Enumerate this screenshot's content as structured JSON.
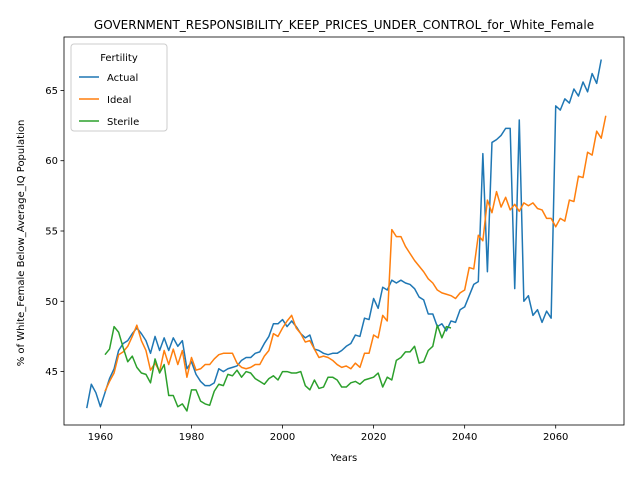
{
  "chart_data": {
    "type": "line",
    "title": "GOVERNMENT_RESPONSIBILITY_KEEP_PRICES_UNDER_CONTROL_for_White_Female",
    "xlabel": "Years",
    "ylabel": "% of White_Female Below_Average_IQ Population",
    "xlim": [
      1952,
      2075
    ],
    "ylim": [
      41.2,
      68.8
    ],
    "xticks": [
      1960,
      1980,
      2000,
      2020,
      2040,
      2060
    ],
    "yticks": [
      45,
      50,
      55,
      60,
      65
    ],
    "grid": false,
    "legend": {
      "title": "Fertility",
      "placement": "upper-left"
    },
    "series": [
      {
        "name": "Actual",
        "color": "#1f77b4",
        "points": [
          [
            1957,
            42.4
          ],
          [
            1958,
            44.1
          ],
          [
            1959,
            43.5
          ],
          [
            1960,
            42.5
          ],
          [
            1961,
            43.5
          ],
          [
            1962,
            44.5
          ],
          [
            1963,
            45.2
          ],
          [
            1964,
            46.5
          ],
          [
            1965,
            47.0
          ],
          [
            1966,
            47.2
          ],
          [
            1967,
            47.7
          ],
          [
            1968,
            48.1
          ],
          [
            1969,
            47.7
          ],
          [
            1970,
            47.2
          ],
          [
            1971,
            46.3
          ],
          [
            1972,
            47.5
          ],
          [
            1973,
            46.5
          ],
          [
            1974,
            47.4
          ],
          [
            1975,
            46.5
          ],
          [
            1976,
            47.4
          ],
          [
            1977,
            46.8
          ],
          [
            1978,
            47.2
          ],
          [
            1979,
            45.2
          ],
          [
            1980,
            45.7
          ],
          [
            1981,
            44.8
          ],
          [
            1982,
            44.3
          ],
          [
            1983,
            44.0
          ],
          [
            1984,
            44.0
          ],
          [
            1985,
            44.2
          ],
          [
            1986,
            45.2
          ],
          [
            1987,
            45.0
          ],
          [
            1988,
            45.2
          ],
          [
            1989,
            45.3
          ],
          [
            1990,
            45.4
          ],
          [
            1991,
            45.8
          ],
          [
            1992,
            46.0
          ],
          [
            1993,
            46.0
          ],
          [
            1994,
            46.3
          ],
          [
            1995,
            46.4
          ],
          [
            1996,
            47.0
          ],
          [
            1997,
            47.5
          ],
          [
            1998,
            48.4
          ],
          [
            1999,
            48.4
          ],
          [
            2000,
            48.7
          ],
          [
            2001,
            48.2
          ],
          [
            2002,
            48.6
          ],
          [
            2003,
            48.2
          ],
          [
            2004,
            47.7
          ],
          [
            2005,
            47.4
          ],
          [
            2006,
            47.6
          ],
          [
            2007,
            46.6
          ],
          [
            2008,
            46.5
          ],
          [
            2009,
            46.3
          ],
          [
            2010,
            46.2
          ],
          [
            2011,
            46.3
          ],
          [
            2012,
            46.3
          ],
          [
            2013,
            46.5
          ],
          [
            2014,
            46.8
          ],
          [
            2015,
            47.0
          ],
          [
            2016,
            47.6
          ],
          [
            2017,
            47.5
          ],
          [
            2018,
            48.8
          ],
          [
            2019,
            48.7
          ],
          [
            2020,
            50.2
          ],
          [
            2021,
            49.5
          ],
          [
            2022,
            51.0
          ],
          [
            2023,
            50.8
          ],
          [
            2024,
            51.5
          ],
          [
            2025,
            51.3
          ],
          [
            2026,
            51.5
          ],
          [
            2027,
            51.3
          ],
          [
            2028,
            51.2
          ],
          [
            2029,
            50.9
          ],
          [
            2030,
            50.3
          ],
          [
            2031,
            50.1
          ],
          [
            2032,
            49.1
          ],
          [
            2033,
            49.1
          ],
          [
            2034,
            48.2
          ],
          [
            2035,
            48.4
          ],
          [
            2036,
            47.9
          ],
          [
            2037,
            48.6
          ],
          [
            2038,
            48.5
          ],
          [
            2039,
            49.4
          ],
          [
            2040,
            49.6
          ],
          [
            2041,
            50.4
          ],
          [
            2042,
            51.2
          ],
          [
            2043,
            51.4
          ],
          [
            2044,
            60.5
          ],
          [
            2045,
            52.1
          ],
          [
            2046,
            61.3
          ],
          [
            2047,
            61.5
          ],
          [
            2048,
            61.8
          ],
          [
            2049,
            62.3
          ],
          [
            2050,
            62.3
          ],
          [
            2051,
            50.9
          ],
          [
            2052,
            62.9
          ],
          [
            2053,
            50.0
          ],
          [
            2054,
            50.4
          ],
          [
            2055,
            49.0
          ],
          [
            2056,
            49.4
          ],
          [
            2057,
            48.5
          ],
          [
            2058,
            49.3
          ],
          [
            2059,
            48.8
          ],
          [
            2060,
            63.9
          ],
          [
            2061,
            63.6
          ],
          [
            2062,
            64.4
          ],
          [
            2063,
            64.1
          ],
          [
            2064,
            65.1
          ],
          [
            2065,
            64.6
          ],
          [
            2066,
            65.6
          ],
          [
            2067,
            64.9
          ],
          [
            2068,
            66.2
          ],
          [
            2069,
            65.5
          ],
          [
            2070,
            67.2
          ]
        ]
      },
      {
        "name": "Ideal",
        "color": "#ff7f0e",
        "points": [
          [
            1961,
            43.6
          ],
          [
            1962,
            44.3
          ],
          [
            1963,
            44.9
          ],
          [
            1964,
            46.2
          ],
          [
            1965,
            46.4
          ],
          [
            1966,
            46.8
          ],
          [
            1967,
            47.5
          ],
          [
            1968,
            48.3
          ],
          [
            1969,
            47.2
          ],
          [
            1970,
            46.5
          ],
          [
            1971,
            45.1
          ],
          [
            1972,
            45.6
          ],
          [
            1973,
            45.0
          ],
          [
            1974,
            46.5
          ],
          [
            1975,
            45.5
          ],
          [
            1976,
            46.6
          ],
          [
            1977,
            45.5
          ],
          [
            1978,
            46.5
          ],
          [
            1979,
            44.6
          ],
          [
            1980,
            46.0
          ],
          [
            1981,
            45.1
          ],
          [
            1982,
            45.2
          ],
          [
            1983,
            45.5
          ],
          [
            1984,
            45.5
          ],
          [
            1985,
            45.9
          ],
          [
            1986,
            46.2
          ],
          [
            1987,
            46.3
          ],
          [
            1988,
            46.3
          ],
          [
            1989,
            46.3
          ],
          [
            1990,
            45.6
          ],
          [
            1991,
            45.3
          ],
          [
            1992,
            45.2
          ],
          [
            1993,
            45.3
          ],
          [
            1994,
            45.5
          ],
          [
            1995,
            45.5
          ],
          [
            1996,
            46.1
          ],
          [
            1997,
            46.5
          ],
          [
            1998,
            47.7
          ],
          [
            1999,
            47.5
          ],
          [
            2000,
            48.1
          ],
          [
            2001,
            48.6
          ],
          [
            2002,
            49.0
          ],
          [
            2003,
            48.1
          ],
          [
            2004,
            47.7
          ],
          [
            2005,
            47.1
          ],
          [
            2006,
            47.2
          ],
          [
            2007,
            46.6
          ],
          [
            2008,
            46.0
          ],
          [
            2009,
            46.1
          ],
          [
            2010,
            46.0
          ],
          [
            2011,
            45.8
          ],
          [
            2012,
            45.5
          ],
          [
            2013,
            45.3
          ],
          [
            2014,
            45.4
          ],
          [
            2015,
            45.2
          ],
          [
            2016,
            45.6
          ],
          [
            2017,
            45.3
          ],
          [
            2018,
            46.3
          ],
          [
            2019,
            46.3
          ],
          [
            2020,
            47.6
          ],
          [
            2021,
            47.4
          ],
          [
            2022,
            49.0
          ],
          [
            2023,
            48.6
          ],
          [
            2024,
            55.1
          ],
          [
            2025,
            54.6
          ],
          [
            2026,
            54.6
          ],
          [
            2027,
            53.9
          ],
          [
            2028,
            53.4
          ],
          [
            2029,
            52.9
          ],
          [
            2030,
            52.5
          ],
          [
            2031,
            52.1
          ],
          [
            2032,
            51.6
          ],
          [
            2033,
            51.3
          ],
          [
            2034,
            50.8
          ],
          [
            2035,
            50.6
          ],
          [
            2036,
            50.5
          ],
          [
            2037,
            50.4
          ],
          [
            2038,
            50.2
          ],
          [
            2039,
            50.6
          ],
          [
            2040,
            50.8
          ],
          [
            2041,
            52.4
          ],
          [
            2042,
            52.3
          ],
          [
            2043,
            54.7
          ],
          [
            2044,
            54.3
          ],
          [
            2045,
            57.2
          ],
          [
            2046,
            56.3
          ],
          [
            2047,
            57.8
          ],
          [
            2048,
            56.7
          ],
          [
            2049,
            57.4
          ],
          [
            2050,
            56.5
          ],
          [
            2051,
            56.9
          ],
          [
            2052,
            56.4
          ],
          [
            2053,
            57.0
          ],
          [
            2054,
            56.8
          ],
          [
            2055,
            57.0
          ],
          [
            2056,
            56.6
          ],
          [
            2057,
            56.5
          ],
          [
            2058,
            55.9
          ],
          [
            2059,
            55.9
          ],
          [
            2060,
            55.3
          ],
          [
            2061,
            55.9
          ],
          [
            2062,
            55.7
          ],
          [
            2063,
            57.2
          ],
          [
            2064,
            57.1
          ],
          [
            2065,
            58.9
          ],
          [
            2066,
            58.8
          ],
          [
            2067,
            60.6
          ],
          [
            2068,
            60.4
          ],
          [
            2069,
            62.1
          ],
          [
            2070,
            61.6
          ],
          [
            2071,
            63.2
          ]
        ]
      },
      {
        "name": "Sterile",
        "color": "#2ca02c",
        "points": [
          [
            1961,
            46.2
          ],
          [
            1962,
            46.6
          ],
          [
            1963,
            48.2
          ],
          [
            1964,
            47.8
          ],
          [
            1965,
            46.7
          ],
          [
            1966,
            45.7
          ],
          [
            1967,
            46.1
          ],
          [
            1968,
            45.3
          ],
          [
            1969,
            44.9
          ],
          [
            1970,
            44.8
          ],
          [
            1971,
            44.2
          ],
          [
            1972,
            45.9
          ],
          [
            1973,
            44.9
          ],
          [
            1974,
            45.5
          ],
          [
            1975,
            43.3
          ],
          [
            1976,
            43.3
          ],
          [
            1977,
            42.5
          ],
          [
            1978,
            42.7
          ],
          [
            1979,
            42.2
          ],
          [
            1980,
            43.7
          ],
          [
            1981,
            43.7
          ],
          [
            1982,
            42.9
          ],
          [
            1983,
            42.7
          ],
          [
            1984,
            42.6
          ],
          [
            1985,
            43.6
          ],
          [
            1986,
            44.1
          ],
          [
            1987,
            44.0
          ],
          [
            1988,
            44.8
          ],
          [
            1989,
            44.7
          ],
          [
            1990,
            45.1
          ],
          [
            1991,
            44.6
          ],
          [
            1992,
            45.0
          ],
          [
            1993,
            44.9
          ],
          [
            1994,
            44.5
          ],
          [
            1995,
            44.3
          ],
          [
            1996,
            44.1
          ],
          [
            1997,
            44.5
          ],
          [
            1998,
            44.7
          ],
          [
            1999,
            44.4
          ],
          [
            2000,
            45.0
          ],
          [
            2001,
            45.0
          ],
          [
            2002,
            44.9
          ],
          [
            2003,
            44.9
          ],
          [
            2004,
            45.0
          ],
          [
            2005,
            44.0
          ],
          [
            2006,
            43.7
          ],
          [
            2007,
            44.4
          ],
          [
            2008,
            43.8
          ],
          [
            2009,
            43.9
          ],
          [
            2010,
            44.6
          ],
          [
            2011,
            44.6
          ],
          [
            2012,
            44.4
          ],
          [
            2013,
            43.9
          ],
          [
            2014,
            43.9
          ],
          [
            2015,
            44.2
          ],
          [
            2016,
            44.3
          ],
          [
            2017,
            44.1
          ],
          [
            2018,
            44.4
          ],
          [
            2019,
            44.5
          ],
          [
            2020,
            44.6
          ],
          [
            2021,
            44.9
          ],
          [
            2022,
            43.9
          ],
          [
            2023,
            44.6
          ],
          [
            2024,
            44.4
          ],
          [
            2025,
            45.8
          ],
          [
            2026,
            46.0
          ],
          [
            2027,
            46.4
          ],
          [
            2028,
            46.4
          ],
          [
            2029,
            46.8
          ],
          [
            2030,
            45.6
          ],
          [
            2031,
            45.7
          ],
          [
            2032,
            46.5
          ],
          [
            2033,
            46.8
          ],
          [
            2034,
            48.3
          ],
          [
            2035,
            47.4
          ],
          [
            2036,
            48.2
          ],
          [
            2037,
            48.1
          ]
        ]
      }
    ]
  }
}
